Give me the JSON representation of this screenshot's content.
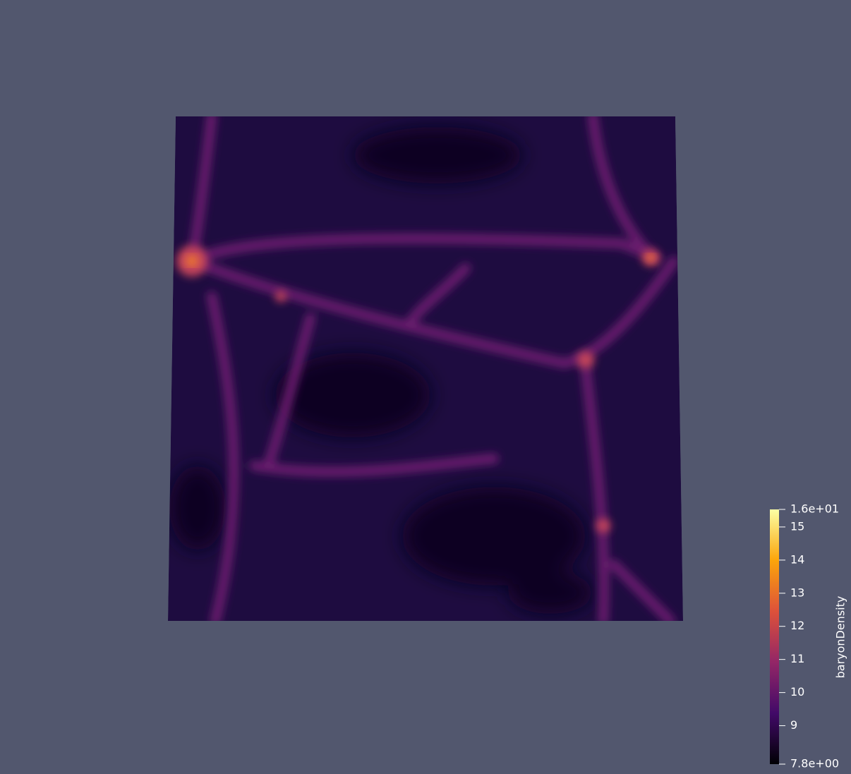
{
  "colorbar": {
    "title": "baryonDensity",
    "range": [
      {
        "value": 7.84,
        "label": "7.8e+00"
      },
      {
        "value": 15.53,
        "label": "1.6e+01"
      }
    ],
    "ticks": [
      9,
      10,
      11,
      12,
      13,
      14,
      15
    ]
  }
}
